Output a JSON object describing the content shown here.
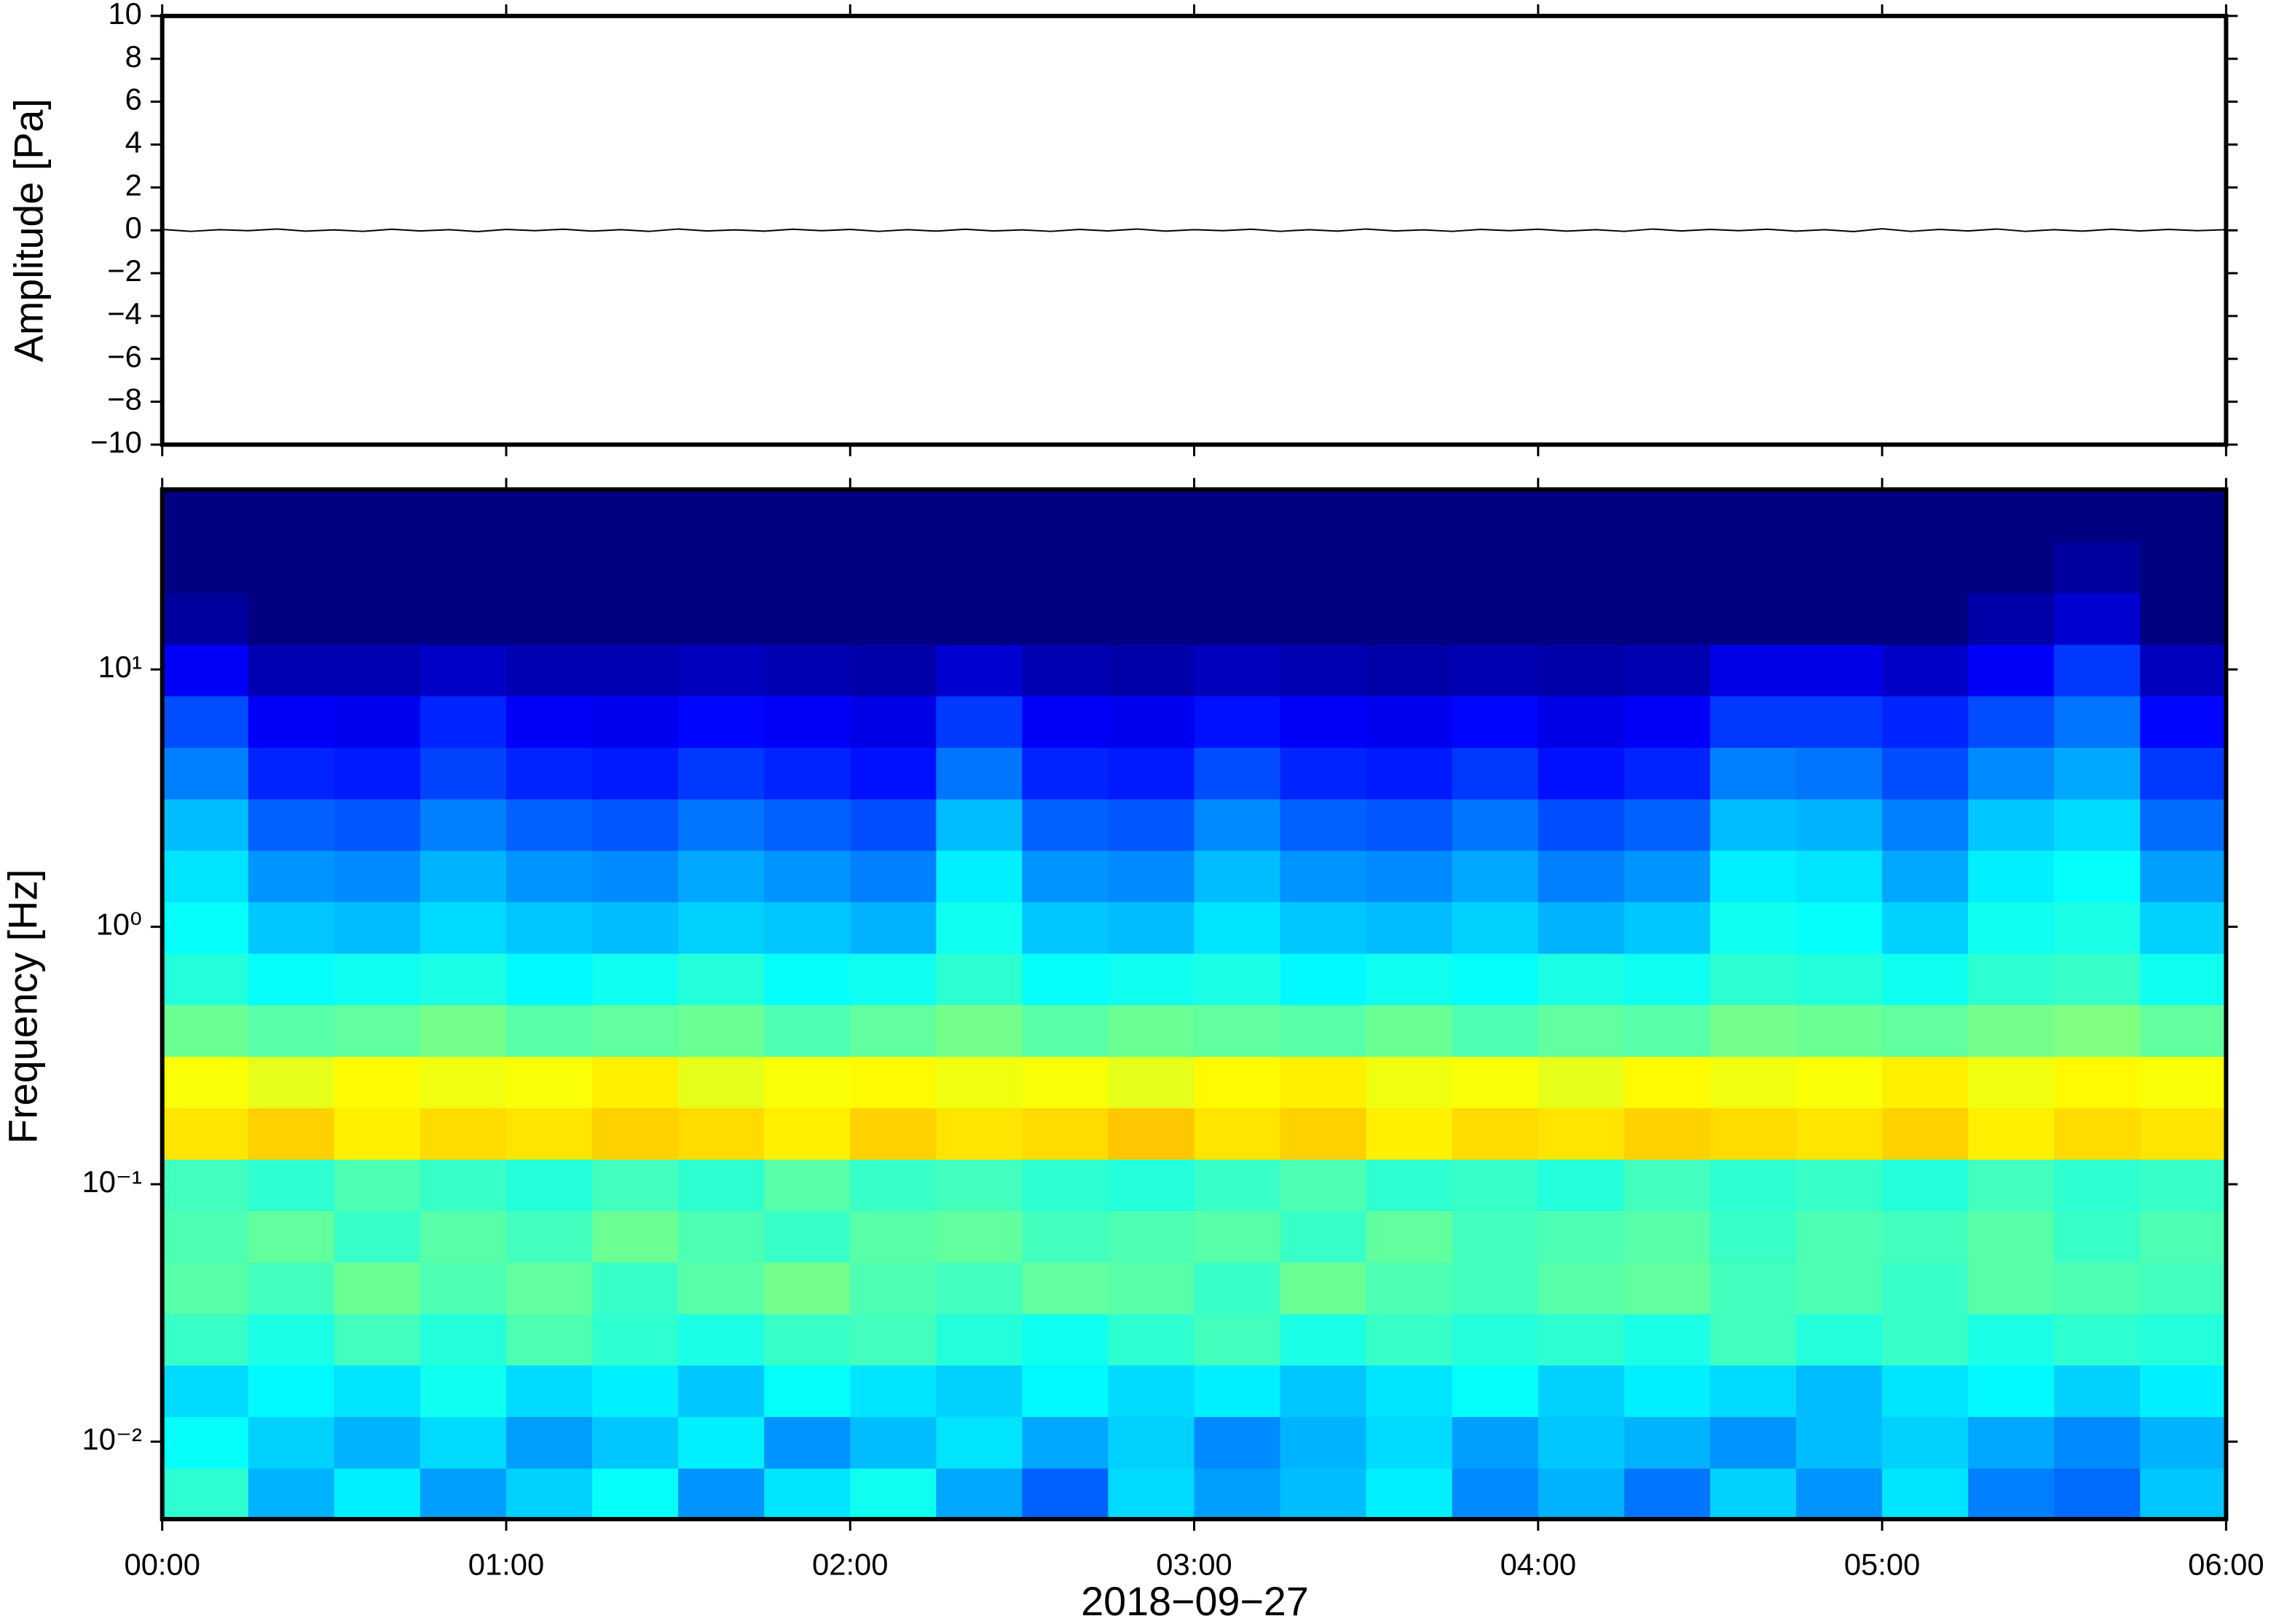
{
  "chart_data": [
    {
      "type": "line",
      "ylabel": "Amplitude [Pa]",
      "color": "#000000",
      "xlim": [
        0,
        360
      ],
      "ylim": [
        -10,
        10
      ],
      "yticks": [
        {
          "value": -10,
          "label": "−10"
        },
        {
          "value": -8,
          "label": "−8"
        },
        {
          "value": -6,
          "label": "−6"
        },
        {
          "value": -4,
          "label": "−4"
        },
        {
          "value": -2,
          "label": "−2"
        },
        0,
        2,
        4,
        6,
        8,
        10
      ],
      "x": [
        0,
        5,
        10,
        15,
        20,
        25,
        30,
        35,
        40,
        45,
        50,
        55,
        60,
        65,
        70,
        75,
        80,
        85,
        90,
        95,
        100,
        105,
        110,
        115,
        120,
        125,
        130,
        135,
        140,
        145,
        150,
        155,
        160,
        165,
        170,
        175,
        180,
        185,
        190,
        195,
        200,
        205,
        210,
        215,
        220,
        225,
        230,
        235,
        240,
        245,
        250,
        255,
        260,
        265,
        270,
        275,
        280,
        285,
        290,
        295,
        300,
        305,
        310,
        315,
        320,
        325,
        330,
        335,
        340,
        345,
        350,
        355,
        360
      ],
      "values": [
        0.04,
        -0.05,
        0.03,
        -0.02,
        0.06,
        -0.04,
        0.02,
        -0.05,
        0.05,
        -0.03,
        0.03,
        -0.06,
        0.04,
        -0.02,
        0.05,
        -0.04,
        0.03,
        -0.05,
        0.06,
        -0.03,
        0.02,
        -0.04,
        0.05,
        -0.02,
        0.04,
        -0.05,
        0.03,
        -0.04,
        0.05,
        -0.03,
        0.02,
        -0.05,
        0.04,
        -0.03,
        0.06,
        -0.04,
        0.03,
        -0.02,
        0.05,
        -0.05,
        0.03,
        -0.04,
        0.06,
        -0.03,
        0.02,
        -0.05,
        0.04,
        -0.02,
        0.05,
        -0.04,
        0.03,
        -0.05,
        0.06,
        -0.03,
        0.04,
        -0.02,
        0.05,
        -0.04,
        0.03,
        -0.06,
        0.07,
        -0.05,
        0.04,
        -0.03,
        0.06,
        -0.05,
        0.03,
        -0.04,
        0.05,
        -0.03,
        0.04,
        -0.02,
        0.03
      ]
    },
    {
      "type": "heatmap",
      "ylabel": "Frequency [Hz]",
      "xlabel": "2018−09−27",
      "ylog": true,
      "colormap": "jet",
      "xlim": [
        0,
        360
      ],
      "ylim": [
        0.005,
        50
      ],
      "zlim": [
        0,
        10
      ],
      "xticks": [
        {
          "value": 0,
          "label": "00:00"
        },
        {
          "value": 60,
          "label": "01:00"
        },
        {
          "value": 120,
          "label": "02:00"
        },
        {
          "value": 180,
          "label": "03:00"
        },
        {
          "value": 240,
          "label": "04:00"
        },
        {
          "value": 300,
          "label": "05:00"
        },
        {
          "value": 360,
          "label": "06:00"
        }
      ],
      "yticks": [
        {
          "value": 0.01,
          "label": "10⁻²"
        },
        {
          "value": 0.1,
          "label": "10⁻¹"
        },
        {
          "value": 1,
          "label": "10⁰"
        },
        {
          "value": 10,
          "label": "10¹"
        }
      ],
      "xbins": [
        0,
        15,
        30,
        45,
        60,
        75,
        90,
        105,
        120,
        135,
        150,
        165,
        180,
        195,
        210,
        225,
        240,
        255,
        270,
        285,
        300,
        315,
        330,
        345,
        360
      ],
      "ybins": [
        0.005,
        0.00792,
        0.01256,
        0.0199,
        0.0315,
        0.05,
        0.0792,
        0.1256,
        0.199,
        0.315,
        0.5,
        0.792,
        1.256,
        1.99,
        3.15,
        5,
        7.92,
        12.56,
        19.9,
        31.5,
        50
      ],
      "z": [
        [
          4.2,
          3.0,
          3.6,
          2.8,
          3.3,
          3.8,
          2.7,
          3.5,
          3.9,
          2.9,
          2.2,
          3.4,
          2.8,
          3.1,
          3.6,
          2.6,
          3.0,
          2.4,
          3.3,
          2.7,
          3.5,
          2.5,
          2.3,
          3.2
        ],
        [
          3.8,
          3.3,
          3.0,
          3.4,
          2.8,
          3.2,
          3.6,
          2.7,
          3.1,
          3.5,
          2.9,
          3.3,
          2.6,
          3.0,
          3.4,
          2.8,
          3.2,
          3.0,
          2.7,
          3.1,
          3.3,
          2.9,
          2.6,
          3.0
        ],
        [
          3.4,
          3.7,
          3.5,
          3.9,
          3.4,
          3.6,
          3.2,
          3.8,
          3.5,
          3.3,
          3.7,
          3.4,
          3.6,
          3.2,
          3.5,
          3.8,
          3.3,
          3.6,
          3.4,
          3.1,
          3.5,
          3.7,
          3.3,
          3.6
        ],
        [
          4.3,
          4.0,
          4.4,
          4.1,
          4.5,
          4.2,
          4.0,
          4.3,
          4.4,
          4.1,
          3.9,
          4.2,
          4.4,
          4.0,
          4.3,
          4.1,
          4.2,
          4.0,
          4.4,
          4.1,
          4.3,
          4.0,
          4.2,
          4.1
        ],
        [
          4.6,
          4.4,
          4.8,
          4.5,
          4.7,
          4.3,
          4.6,
          4.9,
          4.5,
          4.4,
          4.7,
          4.6,
          4.3,
          4.8,
          4.5,
          4.4,
          4.6,
          4.7,
          4.4,
          4.5,
          4.3,
          4.6,
          4.5,
          4.4
        ],
        [
          4.5,
          4.7,
          4.3,
          4.6,
          4.4,
          4.8,
          4.5,
          4.3,
          4.6,
          4.7,
          4.4,
          4.5,
          4.6,
          4.3,
          4.7,
          4.4,
          4.5,
          4.6,
          4.3,
          4.5,
          4.4,
          4.6,
          4.3,
          4.5
        ],
        [
          4.4,
          4.2,
          4.5,
          4.3,
          4.1,
          4.4,
          4.2,
          4.6,
          4.3,
          4.4,
          4.2,
          4.1,
          4.3,
          4.5,
          4.2,
          4.3,
          4.1,
          4.4,
          4.2,
          4.3,
          4.1,
          4.4,
          4.2,
          4.3
        ],
        [
          6.5,
          6.7,
          6.4,
          6.6,
          6.5,
          6.7,
          6.6,
          6.4,
          6.7,
          6.5,
          6.6,
          6.8,
          6.5,
          6.7,
          6.4,
          6.6,
          6.5,
          6.7,
          6.6,
          6.5,
          6.7,
          6.4,
          6.6,
          6.5
        ],
        [
          6.2,
          6.0,
          6.3,
          6.1,
          6.2,
          6.4,
          6.0,
          6.2,
          6.3,
          6.1,
          6.2,
          6.0,
          6.3,
          6.4,
          6.1,
          6.2,
          6.0,
          6.3,
          6.1,
          6.2,
          6.4,
          6.1,
          6.3,
          6.2
        ],
        [
          4.8,
          4.6,
          4.7,
          4.9,
          4.6,
          4.7,
          4.8,
          4.5,
          4.7,
          4.9,
          4.6,
          4.8,
          4.7,
          4.6,
          4.8,
          4.5,
          4.7,
          4.6,
          4.9,
          4.8,
          4.7,
          4.9,
          5.0,
          4.7
        ],
        [
          4.1,
          3.8,
          3.9,
          4.0,
          3.7,
          3.9,
          4.1,
          3.8,
          3.9,
          4.2,
          3.8,
          3.9,
          4.0,
          3.7,
          3.9,
          3.8,
          4.0,
          3.9,
          4.2,
          4.1,
          3.9,
          4.2,
          4.3,
          3.9
        ],
        [
          3.8,
          3.2,
          3.1,
          3.4,
          3.2,
          3.1,
          3.3,
          3.2,
          3.0,
          3.9,
          3.2,
          3.1,
          3.5,
          3.2,
          3.1,
          3.3,
          3.0,
          3.2,
          3.9,
          3.8,
          3.3,
          3.9,
          4.0,
          3.3
        ],
        [
          3.5,
          2.7,
          2.6,
          3.0,
          2.7,
          2.6,
          2.9,
          2.7,
          2.5,
          3.6,
          2.7,
          2.6,
          3.1,
          2.7,
          2.6,
          2.9,
          2.5,
          2.7,
          3.6,
          3.5,
          2.9,
          3.6,
          3.8,
          2.8
        ],
        [
          3.1,
          2.2,
          2.1,
          2.5,
          2.2,
          2.1,
          2.4,
          2.2,
          2.0,
          3.1,
          2.2,
          2.1,
          2.6,
          2.2,
          2.1,
          2.4,
          2.0,
          2.2,
          3.1,
          3.0,
          2.5,
          3.2,
          3.4,
          2.3
        ],
        [
          2.5,
          1.6,
          1.5,
          1.9,
          1.6,
          1.5,
          1.8,
          1.6,
          1.4,
          2.4,
          1.6,
          1.5,
          2.0,
          1.6,
          1.5,
          1.8,
          1.4,
          1.6,
          2.5,
          2.4,
          2.0,
          2.6,
          2.9,
          1.8
        ],
        [
          2.0,
          1.2,
          1.1,
          1.6,
          1.2,
          1.1,
          1.3,
          1.2,
          1.0,
          1.8,
          1.2,
          1.1,
          1.4,
          1.2,
          1.1,
          1.3,
          1.0,
          1.2,
          1.8,
          1.8,
          1.6,
          2.0,
          2.4,
          1.3
        ],
        [
          1.2,
          0.5,
          0.5,
          0.7,
          0.5,
          0.5,
          0.6,
          0.5,
          0.4,
          0.8,
          0.5,
          0.4,
          0.6,
          0.5,
          0.4,
          0.5,
          0.4,
          0.5,
          1.0,
          1.0,
          0.7,
          1.2,
          1.8,
          0.6
        ],
        [
          0.3,
          0,
          0,
          0,
          0,
          0,
          0,
          0,
          0,
          0,
          0,
          0,
          0,
          0,
          0,
          0,
          0,
          0,
          0,
          0,
          0,
          0.4,
          0.8,
          0
        ],
        [
          0,
          0,
          0,
          0,
          0,
          0,
          0,
          0,
          0,
          0,
          0,
          0,
          0,
          0,
          0,
          0,
          0,
          0,
          0,
          0,
          0,
          0,
          0.3,
          0
        ],
        [
          0,
          0,
          0,
          0,
          0,
          0,
          0,
          0,
          0,
          0,
          0,
          0,
          0,
          0,
          0,
          0,
          0,
          0,
          0,
          0,
          0,
          0,
          0,
          0
        ]
      ]
    }
  ]
}
